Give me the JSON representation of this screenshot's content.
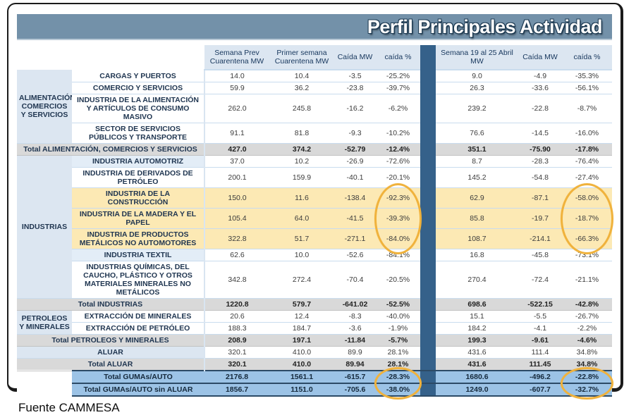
{
  "title": "Perfil Principales Actividad",
  "source": "Fuente CAMMESA",
  "colors": {
    "title_bar": "#7391a9",
    "header_bg": "#dce6f1",
    "group_bg": "#dce6f1",
    "total_bg": "#d9d9d9",
    "yellow_highlight": "#fce9b4",
    "blue_total_row": "#9cc3e6",
    "separator_column": "#35618a",
    "circle_annotation": "#f0b23c",
    "shaded_label": "#e3edf7"
  },
  "table": {
    "columns": [
      "Semana Prev Cuarentena MW",
      "Primer semana Cuarentena MW",
      "Caída MW",
      "caída %",
      "Semana 19 al 25 Abril MW",
      "Caída MW",
      "caída %"
    ],
    "rows": [
      {
        "type": "data",
        "group": "ALIMENTACIÓN, COMERCIOS Y SERVICIOS",
        "group_rows": 4,
        "label": "CARGAS Y PUERTOS",
        "values": [
          "14.0",
          "10.4",
          "-3.5",
          "-25.2%",
          "9.0",
          "-4.9",
          "-35.3%"
        ]
      },
      {
        "type": "data",
        "label": "COMERCIO Y SERVICIOS",
        "values": [
          "59.9",
          "36.2",
          "-23.8",
          "-39.7%",
          "26.3",
          "-33.6",
          "-56.1%"
        ]
      },
      {
        "type": "data",
        "label": "INDUSTRIA DE LA ALIMENTACIÓN Y ARTÍCULOS DE CONSUMO MASIVO",
        "values": [
          "262.0",
          "245.8",
          "-16.2",
          "-6.2%",
          "239.2",
          "-22.8",
          "-8.7%"
        ]
      },
      {
        "type": "data",
        "label": "SECTOR DE SERVICIOS PÚBLICOS Y TRANSPORTE",
        "values": [
          "91.1",
          "81.8",
          "-9.3",
          "-10.2%",
          "76.6",
          "-14.5",
          "-16.0%"
        ]
      },
      {
        "type": "total",
        "label": "Total ALIMENTACIÓN, COMERCIOS Y SERVICIOS",
        "values": [
          "427.0",
          "374.2",
          "-52.79",
          "-12.4%",
          "351.1",
          "-75.90",
          "-17.8%"
        ]
      },
      {
        "type": "data",
        "group": "INDUSTRIAS",
        "group_rows": 7,
        "shade": true,
        "label": "INDUSTRIA AUTOMOTRIZ",
        "values": [
          "37.0",
          "10.2",
          "-26.9",
          "-72.6%",
          "8.7",
          "-28.3",
          "-76.4%"
        ]
      },
      {
        "type": "data",
        "label": "INDUSTRIA DE DERIVADOS DE PETRÓLEO",
        "values": [
          "200.1",
          "159.9",
          "-40.1",
          "-20.1%",
          "145.2",
          "-54.8",
          "-27.4%"
        ]
      },
      {
        "type": "data",
        "highlight": true,
        "circle": "yellow",
        "label": "INDUSTRIA DE LA CONSTRUCCIÓN",
        "values": [
          "150.0",
          "11.6",
          "-138.4",
          "-92.3%",
          "62.9",
          "-87.1",
          "-58.0%"
        ]
      },
      {
        "type": "data",
        "highlight": true,
        "circle": "yellow",
        "label": "INDUSTRIA DE LA MADERA Y EL PAPEL",
        "values": [
          "105.4",
          "64.0",
          "-41.5",
          "-39.3%",
          "85.8",
          "-19.7",
          "-18.7%"
        ]
      },
      {
        "type": "data",
        "highlight": true,
        "circle": "yellow",
        "label": "INDUSTRIA DE PRODUCTOS METÁLICOS NO AUTOMOTORES",
        "values": [
          "322.8",
          "51.7",
          "-271.1",
          "-84.0%",
          "108.7",
          "-214.1",
          "-66.3%"
        ]
      },
      {
        "type": "data",
        "shade": true,
        "label": "INDUSTRIA TEXTIL",
        "values": [
          "62.6",
          "10.0",
          "-52.6",
          "-84.1%",
          "16.8",
          "-45.8",
          "-73.1%"
        ]
      },
      {
        "type": "data",
        "label": "INDUSTRIAS QUÍMICAS, DEL CAUCHO, PLÁSTICO Y OTROS MATERIALES MINERALES NO METÁLICOS",
        "values": [
          "342.8",
          "272.4",
          "-70.4",
          "-20.5%",
          "270.4",
          "-72.4",
          "-21.1%"
        ]
      },
      {
        "type": "total",
        "label": "Total INDUSTRIAS",
        "values": [
          "1220.8",
          "579.7",
          "-641.02",
          "-52.5%",
          "698.6",
          "-522.15",
          "-42.8%"
        ]
      },
      {
        "type": "data",
        "group": "PETROLEOS Y MINERALES",
        "group_rows": 2,
        "label": "EXTRACCIÓN DE MINERALES",
        "values": [
          "20.6",
          "12.4",
          "-8.3",
          "-40.0%",
          "15.1",
          "-5.5",
          "-26.7%"
        ]
      },
      {
        "type": "data",
        "label": "EXTRACCIÓN DE PETRÓLEO",
        "values": [
          "188.3",
          "184.7",
          "-3.6",
          "-1.9%",
          "184.2",
          "-4.1",
          "-2.2%"
        ]
      },
      {
        "type": "total",
        "label": "Total PETROLEOS Y MINERALES",
        "values": [
          "208.9",
          "197.1",
          "-11.84",
          "-5.7%",
          "199.3",
          "-9.61",
          "-4.6%"
        ]
      },
      {
        "type": "span",
        "label": "ALUAR",
        "values": [
          "320.1",
          "410.0",
          "89.9",
          "28.1%",
          "431.6",
          "111.4",
          "34.8%"
        ]
      },
      {
        "type": "total",
        "label": "Total ALUAR",
        "values": [
          "320.1",
          "410.0",
          "89.94",
          "28.1%",
          "431.6",
          "111.45",
          "34.8%"
        ]
      },
      {
        "type": "blue",
        "circle": "blue",
        "label": "Total GUMAs/AUTO",
        "values": [
          "2176.8",
          "1561.1",
          "-615.7",
          "-28.3%",
          "1680.6",
          "-496.2",
          "-22.8%"
        ]
      },
      {
        "type": "blue",
        "circle": "blue",
        "label": "Total GUMAs/AUTO sin ALUAR",
        "values": [
          "1856.7",
          "1151.0",
          "-705.6",
          "-38.0%",
          "1249.0",
          "-607.7",
          "-32.7%"
        ]
      }
    ]
  }
}
